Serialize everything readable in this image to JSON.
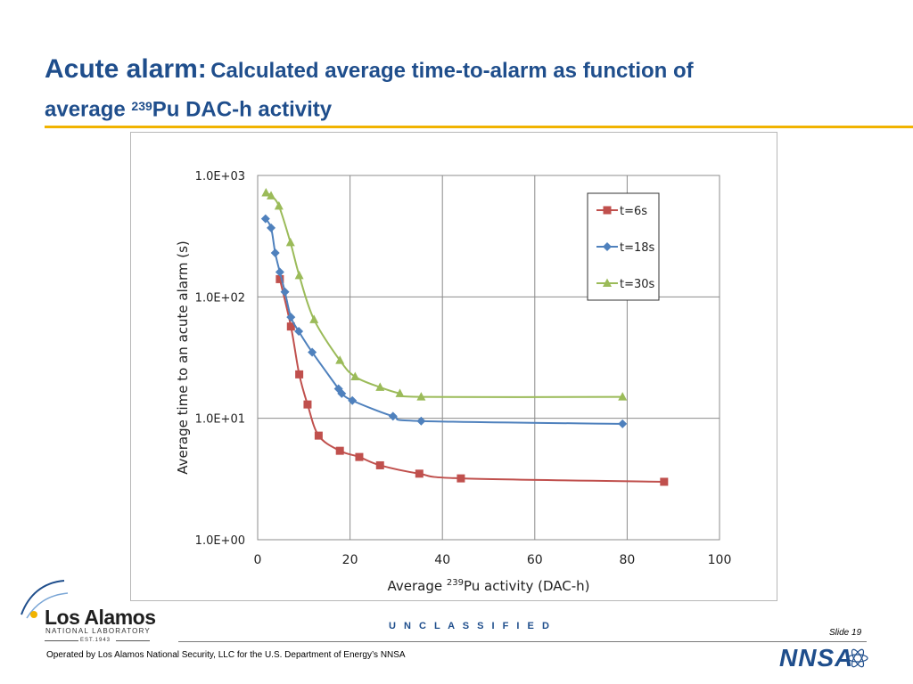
{
  "slide": {
    "title_main": "Acute alarm:",
    "title_rest_1": "Calculated average time-to-alarm as function of",
    "title_rest_2a": "average ",
    "title_sup": "239",
    "title_rest_2b": "Pu DAC-h activity",
    "unclassified": "U N C L A S S I F I E D",
    "slide_number": "Slide 19",
    "operated_by": "Operated by Los Alamos National Security, LLC for the U.S. Department of Energy’s NNSA",
    "logo_name": "Los Alamos",
    "logo_sub": "NATIONAL LABORATORY",
    "logo_est": "EST.1943",
    "nnsa_text": "NNSA"
  },
  "colors": {
    "title": "#1f4e8c",
    "rule": "#f1b300",
    "t6": "#c0504d",
    "t18": "#4f81bd",
    "t30": "#9bbb59"
  },
  "chart_data": {
    "type": "line",
    "x_scale": "linear",
    "y_scale": "log",
    "xlim": [
      0,
      100
    ],
    "ylim": [
      1,
      1000
    ],
    "x_ticks": [
      "0",
      "20",
      "40",
      "60",
      "80",
      "100"
    ],
    "y_ticks": [
      "1.0E+00",
      "1.0E+01",
      "1.0E+02",
      "1.0E+03"
    ],
    "xlabel_pre": "Average ",
    "xlabel_sup": "239",
    "xlabel_post": "Pu activity (DAC-h)",
    "ylabel": "Average time to an acute  alarm (s)",
    "grid": true,
    "legend_position": "top-right",
    "series": [
      {
        "name": "t=6s",
        "color": "#c0504d",
        "marker": "square",
        "points": [
          [
            4.8,
            140
          ],
          [
            7.2,
            57
          ],
          [
            9.0,
            23
          ],
          [
            10.8,
            13
          ],
          [
            13.2,
            7.2
          ],
          [
            17.8,
            5.4
          ],
          [
            22,
            4.8
          ],
          [
            26.5,
            4.1
          ],
          [
            35,
            3.5
          ],
          [
            44,
            3.2
          ],
          [
            88,
            3.0
          ]
        ]
      },
      {
        "name": "t=18s",
        "color": "#4f81bd",
        "marker": "diamond",
        "points": [
          [
            1.7,
            440
          ],
          [
            2.9,
            370
          ],
          [
            3.8,
            230
          ],
          [
            4.8,
            160
          ],
          [
            5.9,
            110
          ],
          [
            7.2,
            68
          ],
          [
            8.9,
            52
          ],
          [
            11.8,
            35
          ],
          [
            17.5,
            17.5
          ],
          [
            18.2,
            16
          ],
          [
            20.5,
            14
          ],
          [
            29.3,
            10.4
          ],
          [
            35.4,
            9.5
          ],
          [
            79,
            9.0
          ]
        ]
      },
      {
        "name": "t=30s",
        "color": "#9bbb59",
        "marker": "triangle",
        "points": [
          [
            1.8,
            720
          ],
          [
            2.9,
            680
          ],
          [
            4.6,
            560
          ],
          [
            7.1,
            280
          ],
          [
            9.0,
            150
          ],
          [
            12.2,
            65
          ],
          [
            17.8,
            30
          ],
          [
            21.1,
            22
          ],
          [
            26.5,
            18
          ],
          [
            30.8,
            16
          ],
          [
            35.4,
            15
          ],
          [
            79,
            15
          ]
        ]
      }
    ]
  }
}
